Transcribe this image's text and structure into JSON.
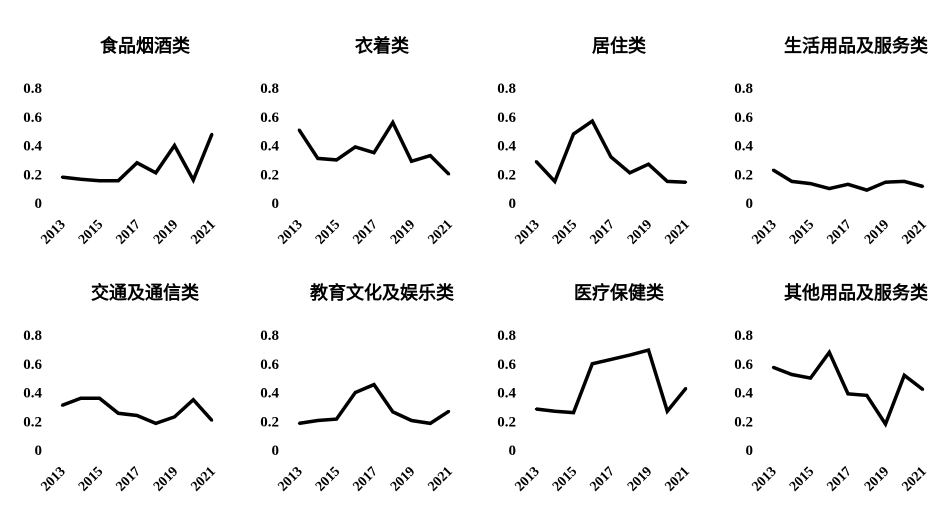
{
  "chart_data": [
    {
      "type": "line",
      "title": "食品烟酒类",
      "x": [
        2013,
        2014,
        2015,
        2016,
        2017,
        2018,
        2019,
        2020,
        2021
      ],
      "x_tick_labels": [
        "2013",
        "2015",
        "2017",
        "2019",
        "2021"
      ],
      "y_tick_labels": [
        "0",
        "0.2",
        "0.4",
        "0.6",
        "0.8"
      ],
      "ylim": [
        0,
        0.8
      ],
      "series": [
        {
          "values": [
            0.18,
            0.165,
            0.155,
            0.155,
            0.28,
            0.21,
            0.4,
            0.16,
            0.48
          ]
        }
      ],
      "grid": false,
      "color": "#000000"
    },
    {
      "type": "line",
      "title": "衣着类",
      "x": [
        2013,
        2014,
        2015,
        2016,
        2017,
        2018,
        2019,
        2020,
        2021
      ],
      "x_tick_labels": [
        "2013",
        "2015",
        "2017",
        "2019",
        "2021"
      ],
      "y_tick_labels": [
        "0",
        "0.2",
        "0.4",
        "0.6",
        "0.8"
      ],
      "ylim": [
        0,
        0.8
      ],
      "series": [
        {
          "values": [
            0.51,
            0.31,
            0.3,
            0.39,
            0.35,
            0.56,
            0.29,
            0.33,
            0.2
          ]
        }
      ],
      "grid": false,
      "color": "#000000"
    },
    {
      "type": "line",
      "title": "居住类",
      "x": [
        2013,
        2014,
        2015,
        2016,
        2017,
        2018,
        2019,
        2020,
        2021
      ],
      "x_tick_labels": [
        "2013",
        "2015",
        "2017",
        "2019",
        "2021"
      ],
      "y_tick_labels": [
        "0",
        "0.2",
        "0.4",
        "0.6",
        "0.8"
      ],
      "ylim": [
        0,
        0.8
      ],
      "series": [
        {
          "values": [
            0.29,
            0.15,
            0.48,
            0.57,
            0.32,
            0.21,
            0.27,
            0.15,
            0.145
          ]
        }
      ],
      "grid": false,
      "color": "#000000"
    },
    {
      "type": "line",
      "title": "生活用品及服务类",
      "x": [
        2013,
        2014,
        2015,
        2016,
        2017,
        2018,
        2019,
        2020,
        2021
      ],
      "x_tick_labels": [
        "2013",
        "2015",
        "2017",
        "2019",
        "2021"
      ],
      "y_tick_labels": [
        "0",
        "0.2",
        "0.4",
        "0.6",
        "0.8"
      ],
      "ylim": [
        0,
        0.8
      ],
      "series": [
        {
          "values": [
            0.23,
            0.15,
            0.135,
            0.1,
            0.13,
            0.09,
            0.145,
            0.15,
            0.115
          ]
        }
      ],
      "grid": false,
      "color": "#000000"
    },
    {
      "type": "line",
      "title": "交通及通信类",
      "x": [
        2013,
        2014,
        2015,
        2016,
        2017,
        2018,
        2019,
        2020,
        2021
      ],
      "x_tick_labels": [
        "2013",
        "2015",
        "2017",
        "2019",
        "2021"
      ],
      "y_tick_labels": [
        "0",
        "0.2",
        "0.4",
        "0.6",
        "0.8"
      ],
      "ylim": [
        0,
        0.8
      ],
      "series": [
        {
          "values": [
            0.31,
            0.36,
            0.36,
            0.255,
            0.24,
            0.185,
            0.23,
            0.35,
            0.205
          ]
        }
      ],
      "grid": false,
      "color": "#000000"
    },
    {
      "type": "line",
      "title": "教育文化及娱乐类",
      "x": [
        2013,
        2014,
        2015,
        2016,
        2017,
        2018,
        2019,
        2020,
        2021
      ],
      "x_tick_labels": [
        "2013",
        "2015",
        "2017",
        "2019",
        "2021"
      ],
      "y_tick_labels": [
        "0",
        "0.2",
        "0.4",
        "0.6",
        "0.8"
      ],
      "ylim": [
        0,
        0.8
      ],
      "series": [
        {
          "values": [
            0.185,
            0.205,
            0.215,
            0.4,
            0.455,
            0.265,
            0.205,
            0.185,
            0.27
          ]
        }
      ],
      "grid": false,
      "color": "#000000"
    },
    {
      "type": "line",
      "title": "医疗保健类",
      "x": [
        2013,
        2014,
        2015,
        2016,
        2017,
        2018,
        2019,
        2020,
        2021
      ],
      "x_tick_labels": [
        "2013",
        "2015",
        "2017",
        "2019",
        "2021"
      ],
      "y_tick_labels": [
        "0",
        "0.2",
        "0.4",
        "0.6",
        "0.8"
      ],
      "ylim": [
        0,
        0.8
      ],
      "series": [
        {
          "values": [
            0.285,
            0.27,
            0.26,
            0.6,
            0.63,
            0.66,
            0.695,
            0.27,
            0.43
          ]
        }
      ],
      "grid": false,
      "color": "#000000"
    },
    {
      "type": "line",
      "title": "其他用品及服务类",
      "x": [
        2013,
        2014,
        2015,
        2016,
        2017,
        2018,
        2019,
        2020,
        2021
      ],
      "x_tick_labels": [
        "2013",
        "2015",
        "2017",
        "2019",
        "2021"
      ],
      "y_tick_labels": [
        "0",
        "0.2",
        "0.4",
        "0.6",
        "0.8"
      ],
      "ylim": [
        0,
        0.8
      ],
      "series": [
        {
          "values": [
            0.575,
            0.525,
            0.5,
            0.68,
            0.39,
            0.38,
            0.18,
            0.52,
            0.42
          ]
        }
      ],
      "grid": false,
      "color": "#000000"
    }
  ]
}
